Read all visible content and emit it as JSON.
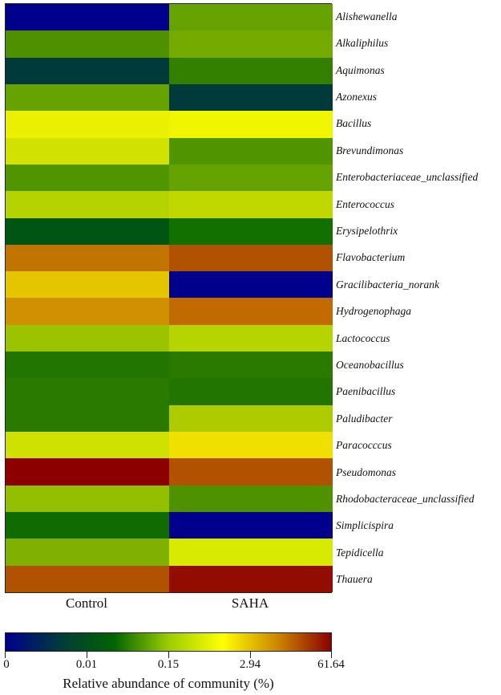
{
  "chart_data": {
    "type": "heatmap",
    "title": "",
    "columns": [
      "Control",
      "SAHA"
    ],
    "rows": [
      "Alishewanella",
      "Alkaliphilus",
      "Aquimonas",
      "Azonexus",
      "Bacillus",
      "Brevundimonas",
      "Enterobacteriaceae_unclassified",
      "Enterococcus",
      "Erysipelothrix",
      "Flavobacterium",
      "Gracilibacteria_norank",
      "Hydrogenophaga",
      "Lactococcus",
      "Oceanobacillus",
      "Paenibacillus",
      "Paludibacter",
      "Paracocccus",
      "Pseudomonas",
      "Rhodobacteraceae_unclassified",
      "Simplicispira",
      "Tepidicella",
      "Thauera"
    ],
    "cell_colors": [
      [
        "#00008c",
        "#67a300"
      ],
      [
        "#4e9000",
        "#75aa00"
      ],
      [
        "#003a3a",
        "#338000"
      ],
      [
        "#67a300",
        "#003a3a"
      ],
      [
        "#ebf000",
        "#f0f500"
      ],
      [
        "#d1e100",
        "#509400"
      ],
      [
        "#509400",
        "#65a400"
      ],
      [
        "#b5d300",
        "#c0d800"
      ],
      [
        "#005514",
        "#117000"
      ],
      [
        "#c27400",
        "#b05200"
      ],
      [
        "#e5c500",
        "#00008c"
      ],
      [
        "#cf9100",
        "#c06a00"
      ],
      [
        "#9bc300",
        "#b5d400"
      ],
      [
        "#217500",
        "#2a7a00"
      ],
      [
        "#2a7a00",
        "#217500"
      ],
      [
        "#2a7a00",
        "#aecb00"
      ],
      [
        "#cfe100",
        "#f0e000"
      ],
      [
        "#8c0000",
        "#b05200"
      ],
      [
        "#93bf00",
        "#4f9200"
      ],
      [
        "#0f6c00",
        "#00008c"
      ],
      [
        "#80b000",
        "#d8ea00"
      ],
      [
        "#b05200",
        "#920c00"
      ]
    ],
    "colorbar": {
      "label": "Relative abundance of community (%)",
      "tick_labels": [
        "0",
        "0.01",
        "0.15",
        "2.94",
        "61.64"
      ],
      "range": [
        0,
        61.64
      ],
      "scale": "log-like",
      "colors": [
        "#00008b",
        "#003b3b",
        "#006400",
        "#9acd00",
        "#ffff00",
        "#cc8800",
        "#8b0000"
      ]
    },
    "xlabel": "",
    "ylabel": ""
  }
}
